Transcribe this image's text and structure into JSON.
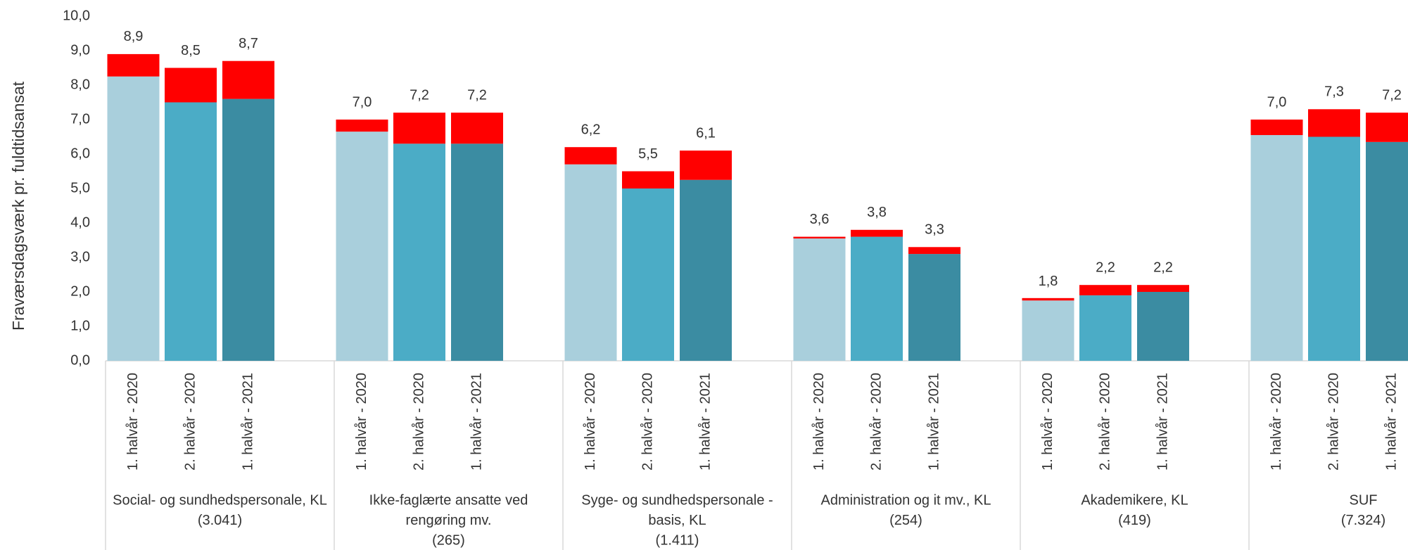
{
  "chart_data": {
    "type": "grouped-stacked-bar",
    "y_label": "Fraværsdagsværk  pr. fuldtidsansat",
    "categories": [
      [
        "Social- og sundhedspersonale, KL",
        "(3.041)"
      ],
      [
        "Ikke-faglærte ansatte ved",
        "rengøring mv.",
        "(265)"
      ],
      [
        "Syge- og sundhedspersonale -",
        "basis, KL",
        "(1.411)"
      ],
      [
        "Administration og it mv., KL",
        "(254)"
      ],
      [
        "Akademikere, KL",
        "(419)"
      ],
      [
        "SUF",
        "(7.324)"
      ]
    ],
    "periods": [
      "1. halvår - 2020",
      "2. halvår - 2020",
      "1. halvår - 2021"
    ],
    "series": [
      {
        "color": [
          "#a9cfdc",
          "#4bacc6",
          "#3b8ca2"
        ],
        "values": [
          [
            8.25,
            7.5,
            7.6
          ],
          [
            6.65,
            6.3,
            6.3
          ],
          [
            5.7,
            5.0,
            5.25
          ],
          [
            3.55,
            3.6,
            3.1
          ],
          [
            1.75,
            1.9,
            2.0
          ],
          [
            6.55,
            6.5,
            6.35
          ]
        ]
      },
      {
        "color": "#ff0000",
        "values": [
          [
            0.65,
            1.0,
            1.1
          ],
          [
            0.35,
            0.9,
            0.9
          ],
          [
            0.5,
            0.5,
            0.85
          ],
          [
            0.05,
            0.2,
            0.2
          ],
          [
            0.07,
            0.3,
            0.2
          ],
          [
            0.45,
            0.8,
            0.85
          ]
        ]
      }
    ],
    "totals": {
      "values": [
        [
          8.9,
          8.5,
          8.7
        ],
        [
          7.0,
          7.2,
          7.2
        ],
        [
          6.2,
          5.5,
          6.1
        ],
        [
          3.6,
          3.8,
          3.3
        ],
        [
          1.8,
          2.2,
          2.2
        ],
        [
          7.0,
          7.3,
          7.2
        ]
      ],
      "value_labels": [
        [
          "8,9",
          "8,5",
          "8,7"
        ],
        [
          "7,0",
          "7,2",
          "7,2"
        ],
        [
          "6,2",
          "5,5",
          "6,1"
        ],
        [
          "3,6",
          "3,8",
          "3,3"
        ],
        [
          "1,8",
          "2,2",
          "2,2"
        ],
        [
          "7,0",
          "7,3",
          "7,2"
        ]
      ]
    },
    "ylim": [
      0,
      10
    ],
    "yticks": [
      {
        "value": 0,
        "label": "0,0"
      },
      {
        "value": 1,
        "label": "1,0"
      },
      {
        "value": 2,
        "label": "2,0"
      },
      {
        "value": 3,
        "label": "3,0"
      },
      {
        "value": 4,
        "label": "4,0"
      },
      {
        "value": 5,
        "label": "5,0"
      },
      {
        "value": 6,
        "label": "6,0"
      },
      {
        "value": 7,
        "label": "7,0"
      },
      {
        "value": 8,
        "label": "8,0"
      },
      {
        "value": 9,
        "label": "9,0"
      },
      {
        "value": 10,
        "label": "10,0"
      }
    ],
    "grid": false
  }
}
